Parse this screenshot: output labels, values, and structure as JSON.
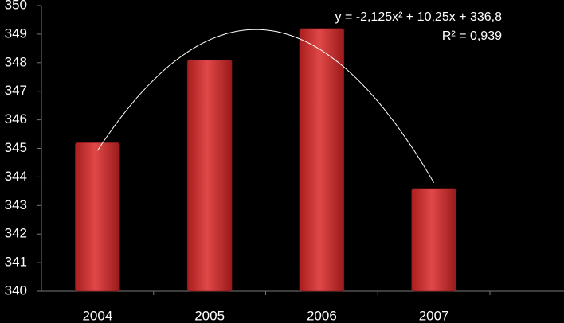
{
  "chart_data": {
    "type": "bar",
    "categories": [
      "2004",
      "2005",
      "2006",
      "2007"
    ],
    "values": [
      345.2,
      348.1,
      349.2,
      343.6
    ],
    "color": "#d83b3b",
    "ylim": [
      340,
      350
    ],
    "yticks": [
      340,
      341,
      342,
      343,
      344,
      345,
      346,
      347,
      348,
      349,
      350
    ],
    "trendline": {
      "equation": "y = -2,125x² + 10,25x + 336,8",
      "r_squared": "R² = 0,939",
      "coefficients": [
        -2.125,
        10.25,
        336.8
      ],
      "color": "#ffffff"
    }
  }
}
